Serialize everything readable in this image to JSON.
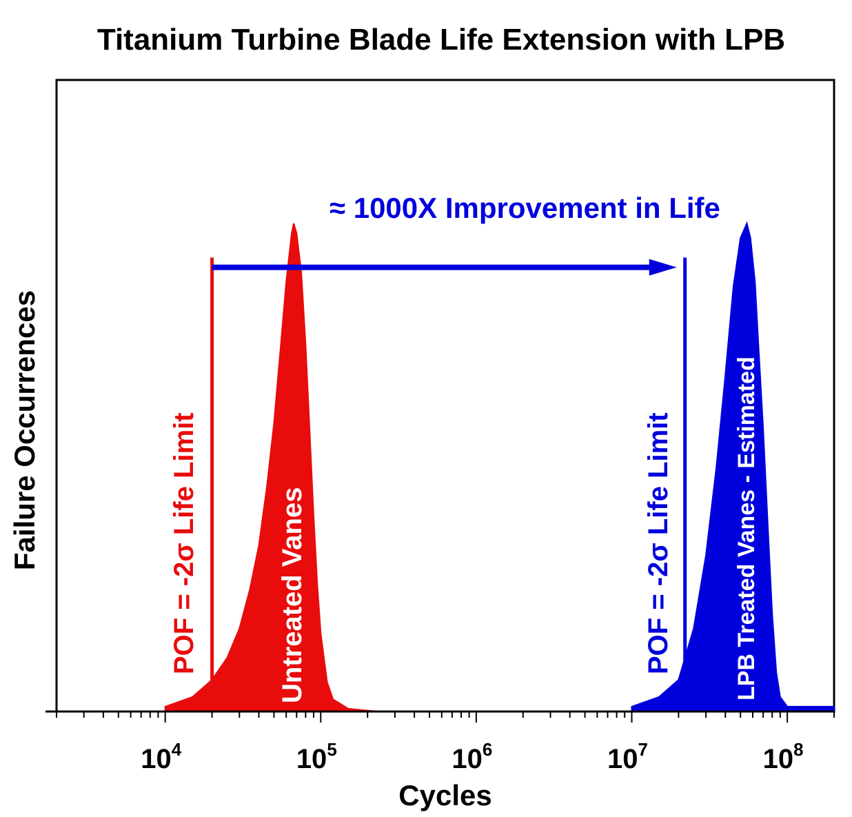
{
  "chart_data": {
    "type": "area",
    "title": "Titanium Turbine Blade Life Extension with LPB",
    "xlabel": "Cycles",
    "ylabel": "Failure Occurrences",
    "x_scale": "log",
    "xlim": [
      2000,
      200000000
    ],
    "ylim": [
      0,
      1.0
    ],
    "grid": false,
    "x_tick_labels": [
      {
        "base": "10",
        "exp": "4",
        "value": 10000
      },
      {
        "base": "10",
        "exp": "5",
        "value": 100000
      },
      {
        "base": "10",
        "exp": "6",
        "value": 1000000
      },
      {
        "base": "10",
        "exp": "7",
        "value": 10000000
      },
      {
        "base": "10",
        "exp": "8",
        "value": 100000000
      }
    ],
    "series": [
      {
        "name": "Untreated Vanes",
        "color": "#e80c0c",
        "x": [
          10000,
          15000,
          20000,
          25000,
          30000,
          35000,
          40000,
          45000,
          50000,
          55000,
          60000,
          65000,
          67000,
          70000,
          75000,
          80000,
          85000,
          90000,
          95000,
          100000,
          110000,
          120000,
          150000,
          200000,
          240000
        ],
        "y": [
          0.01,
          0.03,
          0.065,
          0.11,
          0.17,
          0.25,
          0.34,
          0.46,
          0.59,
          0.74,
          0.88,
          0.98,
          1.0,
          0.98,
          0.9,
          0.75,
          0.57,
          0.4,
          0.26,
          0.16,
          0.06,
          0.025,
          0.006,
          0.002,
          0.0
        ]
      },
      {
        "name": "LPB Treated Vanes - Estimated",
        "color": "#0000dd",
        "x": [
          10000000,
          15000000,
          20000000,
          25000000,
          30000000,
          35000000,
          40000000,
          45000000,
          50000000,
          55000000,
          58000000,
          62000000,
          65000000,
          70000000,
          75000000,
          80000000,
          85000000,
          90000000,
          100000000,
          200000000
        ],
        "y": [
          0.01,
          0.03,
          0.065,
          0.17,
          0.32,
          0.5,
          0.69,
          0.87,
          0.97,
          1.0,
          0.97,
          0.88,
          0.76,
          0.58,
          0.38,
          0.2,
          0.08,
          0.03,
          0.01,
          0.01
        ]
      }
    ],
    "reference_lines": [
      {
        "x": 20000,
        "y": [
          0,
          0.93
        ],
        "color": "#e80c0c",
        "label": "POF = -2σ Life Limit"
      },
      {
        "x": 22000000,
        "y": [
          0,
          0.93
        ],
        "color": "#0000dd",
        "label": "POF = -2σ Life Limit"
      }
    ],
    "arrow": {
      "from_x": 20000,
      "to_x": 22000000,
      "y": 0.91,
      "color": "#0000dd"
    },
    "annotation": {
      "text": "≈ 1000X  Improvement in Life",
      "color": "#0000dd"
    }
  }
}
